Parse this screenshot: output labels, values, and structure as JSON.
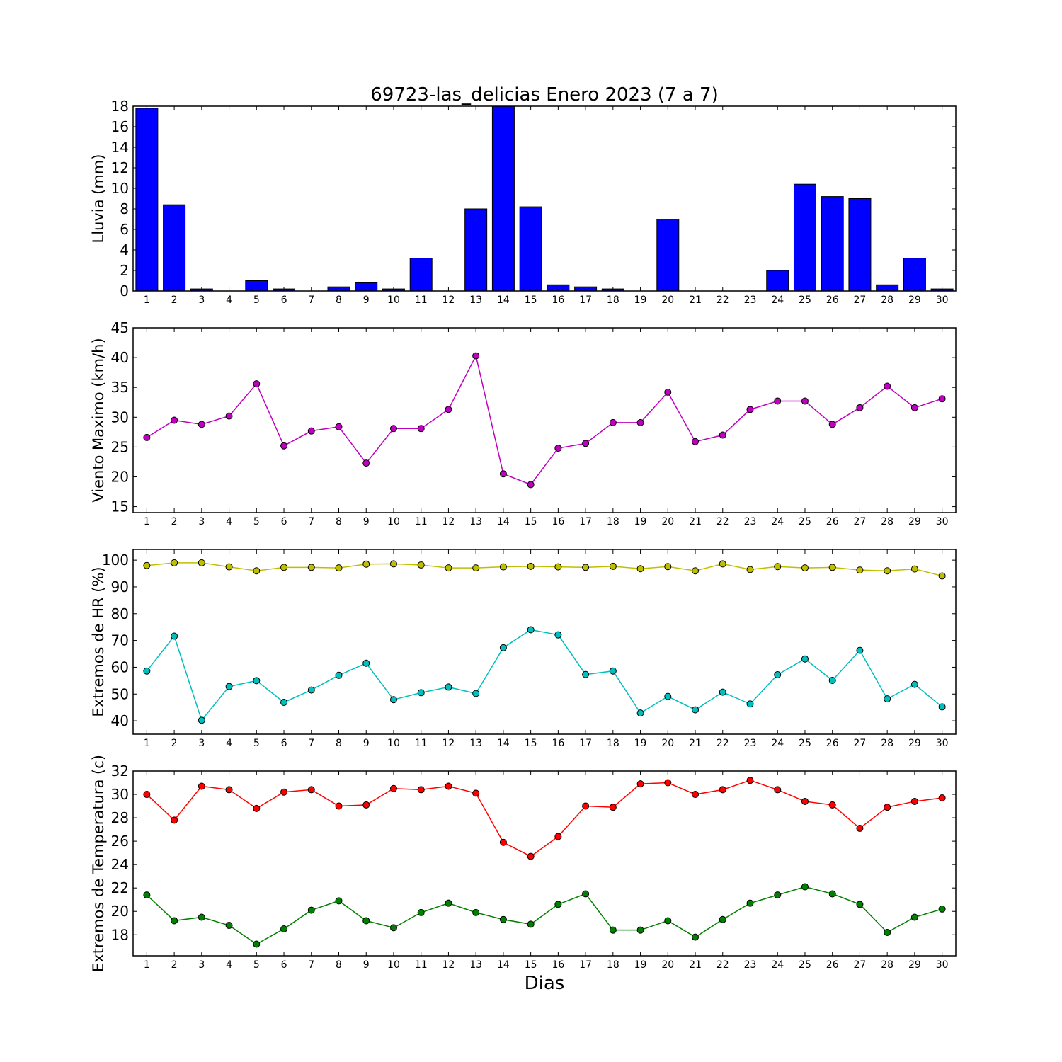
{
  "title": "69723-las_delicias Enero 2023  (7 a 7)",
  "xlabel": "Dias",
  "colors": {
    "rain": "#0000ff",
    "wind": "#bf00bf",
    "hr_max": "#bfbf00",
    "hr_min": "#00bfbf",
    "temp_max": "#ff0000",
    "temp_min": "#008000"
  },
  "chart_data": [
    {
      "type": "bar",
      "ylabel": "Lluvia (mm)",
      "ylim": [
        0,
        18
      ],
      "yticks": [
        0,
        2,
        4,
        6,
        8,
        10,
        12,
        14,
        16,
        18
      ],
      "categories": [
        1,
        2,
        3,
        4,
        5,
        6,
        7,
        8,
        9,
        10,
        11,
        12,
        13,
        14,
        15,
        16,
        17,
        18,
        19,
        20,
        21,
        22,
        23,
        24,
        25,
        26,
        27,
        28,
        29,
        30
      ],
      "values": [
        17.8,
        8.4,
        0.2,
        0,
        1.0,
        0.2,
        0,
        0.4,
        0.8,
        0.2,
        3.2,
        0,
        8.0,
        18.0,
        8.2,
        0.6,
        0.4,
        0.2,
        0,
        7.0,
        0,
        0,
        0,
        2.0,
        10.4,
        9.2,
        9.0,
        0.6,
        3.2,
        0.2
      ]
    },
    {
      "type": "line",
      "ylabel": "Viento Maximo (km/h)",
      "ylim": [
        14,
        45
      ],
      "yticks": [
        15,
        20,
        25,
        30,
        35,
        40,
        45
      ],
      "x": [
        1,
        2,
        3,
        4,
        5,
        6,
        7,
        8,
        9,
        10,
        11,
        12,
        13,
        14,
        15,
        16,
        17,
        18,
        19,
        20,
        21,
        22,
        23,
        24,
        25,
        26,
        27,
        28,
        29,
        30
      ],
      "series": [
        {
          "values": [
            26.6,
            29.5,
            28.8,
            30.2,
            35.6,
            25.2,
            27.7,
            28.4,
            22.3,
            28.1,
            28.1,
            31.3,
            40.3,
            20.5,
            18.7,
            24.8,
            25.6,
            29.1,
            29.1,
            34.2,
            25.9,
            27.0,
            31.3,
            32.7,
            32.7,
            28.8,
            31.6,
            35.2,
            31.6,
            33.1
          ]
        }
      ]
    },
    {
      "type": "line",
      "ylabel": "Extremos de HR (%)",
      "ylim": [
        35,
        104
      ],
      "yticks": [
        40,
        50,
        60,
        70,
        80,
        90,
        100
      ],
      "x": [
        1,
        2,
        3,
        4,
        5,
        6,
        7,
        8,
        9,
        10,
        11,
        12,
        13,
        14,
        15,
        16,
        17,
        18,
        19,
        20,
        21,
        22,
        23,
        24,
        25,
        26,
        27,
        28,
        29,
        30
      ],
      "series": [
        {
          "values": [
            98,
            99,
            99,
            97.5,
            96,
            97.3,
            97.3,
            97.1,
            98.5,
            98.6,
            98.2,
            97.1,
            97.1,
            97.5,
            97.7,
            97.5,
            97.3,
            97.7,
            96.8,
            97.6,
            96,
            98.6,
            96.5,
            97.6,
            97.1,
            97.3,
            96.3,
            96,
            96.7,
            94.1
          ]
        },
        {
          "values": [
            58.6,
            71.6,
            40.2,
            52.8,
            55.0,
            46.9,
            51.5,
            57.0,
            61.5,
            47.9,
            50.5,
            52.6,
            50.2,
            67.3,
            74.0,
            72.1,
            57.3,
            58.6,
            42.9,
            49.1,
            44.1,
            50.7,
            46.3,
            57.2,
            63.1,
            55.1,
            66.3,
            48.2,
            53.6,
            45.2
          ]
        }
      ]
    },
    {
      "type": "line",
      "ylabel": "Extremos de Temperatura (c)",
      "ylim": [
        16.2,
        32
      ],
      "yticks": [
        18,
        20,
        22,
        24,
        26,
        28,
        30,
        32
      ],
      "x": [
        1,
        2,
        3,
        4,
        5,
        6,
        7,
        8,
        9,
        10,
        11,
        12,
        13,
        14,
        15,
        16,
        17,
        18,
        19,
        20,
        21,
        22,
        23,
        24,
        25,
        26,
        27,
        28,
        29,
        30
      ],
      "series": [
        {
          "values": [
            30.0,
            27.8,
            30.7,
            30.4,
            28.8,
            30.2,
            30.4,
            29.0,
            29.1,
            30.5,
            30.4,
            30.7,
            30.1,
            25.9,
            24.7,
            26.4,
            29.0,
            28.9,
            30.9,
            31.0,
            30.0,
            30.4,
            31.2,
            30.4,
            29.4,
            29.1,
            27.1,
            28.9,
            29.4,
            29.7
          ]
        },
        {
          "values": [
            21.4,
            19.2,
            19.5,
            18.8,
            17.2,
            18.5,
            20.1,
            20.9,
            19.2,
            18.6,
            19.9,
            20.7,
            19.9,
            19.3,
            18.9,
            20.6,
            21.5,
            18.4,
            18.4,
            19.2,
            17.8,
            19.3,
            20.7,
            21.4,
            22.1,
            21.5,
            20.6,
            18.2,
            19.5,
            20.2
          ]
        }
      ]
    }
  ]
}
